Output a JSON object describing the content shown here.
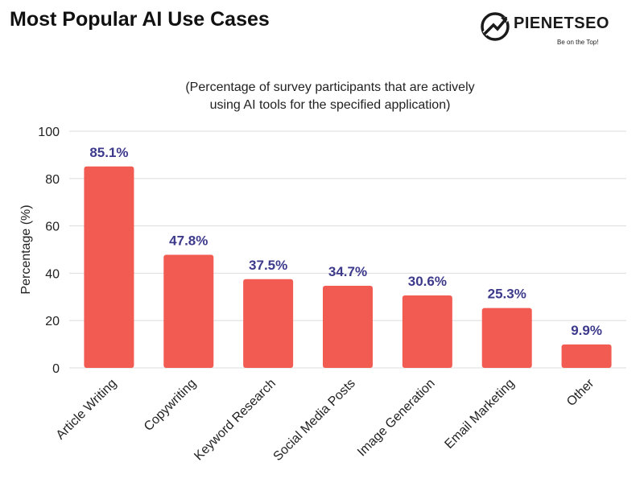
{
  "header": {
    "title": "Most Popular AI Use Cases"
  },
  "logo": {
    "name": "PIENETSEO",
    "tagline": "Be on the Top!"
  },
  "colors": {
    "bar": "#f25b52",
    "data_label": "#3d3a8c",
    "grid": "#dddddd"
  },
  "chart_data": {
    "type": "bar",
    "subtitle_lines": [
      "(Percentage of survey participants that are actively",
      "using AI tools for the specified application)"
    ],
    "categories": [
      "Article Writing",
      "Copywriting",
      "Keyword Research",
      "Social Media Posts",
      "Image Generation",
      "Email Marketing",
      "Other"
    ],
    "values": [
      85.1,
      47.8,
      37.5,
      34.7,
      30.6,
      25.3,
      9.9
    ],
    "data_labels": [
      "85.1%",
      "47.8%",
      "37.5%",
      "34.7%",
      "30.6%",
      "25.3%",
      "9.9%"
    ],
    "xlabel": "",
    "ylabel": "Percentage (%)",
    "ylim": [
      0,
      100
    ],
    "yticks": [
      0,
      20,
      40,
      60,
      80,
      100
    ],
    "grid": true
  }
}
